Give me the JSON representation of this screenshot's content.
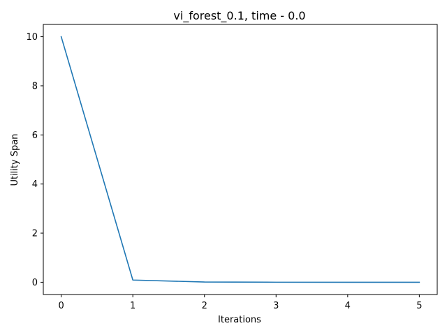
{
  "chart_data": {
    "type": "line",
    "title": "vi_forest_0.1, time - 0.0",
    "xlabel": "Iterations",
    "ylabel": "Utility Span",
    "xlim": [
      -0.25,
      5.25
    ],
    "ylim": [
      -0.5,
      10.5
    ],
    "x_ticks": [
      0,
      1,
      2,
      3,
      4,
      5
    ],
    "y_ticks": [
      0,
      2,
      4,
      6,
      8,
      10
    ],
    "grid": false,
    "series": [
      {
        "color": "#1f77b4",
        "x": [
          0,
          1,
          2,
          3,
          4,
          5
        ],
        "y": [
          10.0,
          0.09,
          0.01,
          0.001,
          0.0001,
          0.0
        ]
      }
    ]
  }
}
